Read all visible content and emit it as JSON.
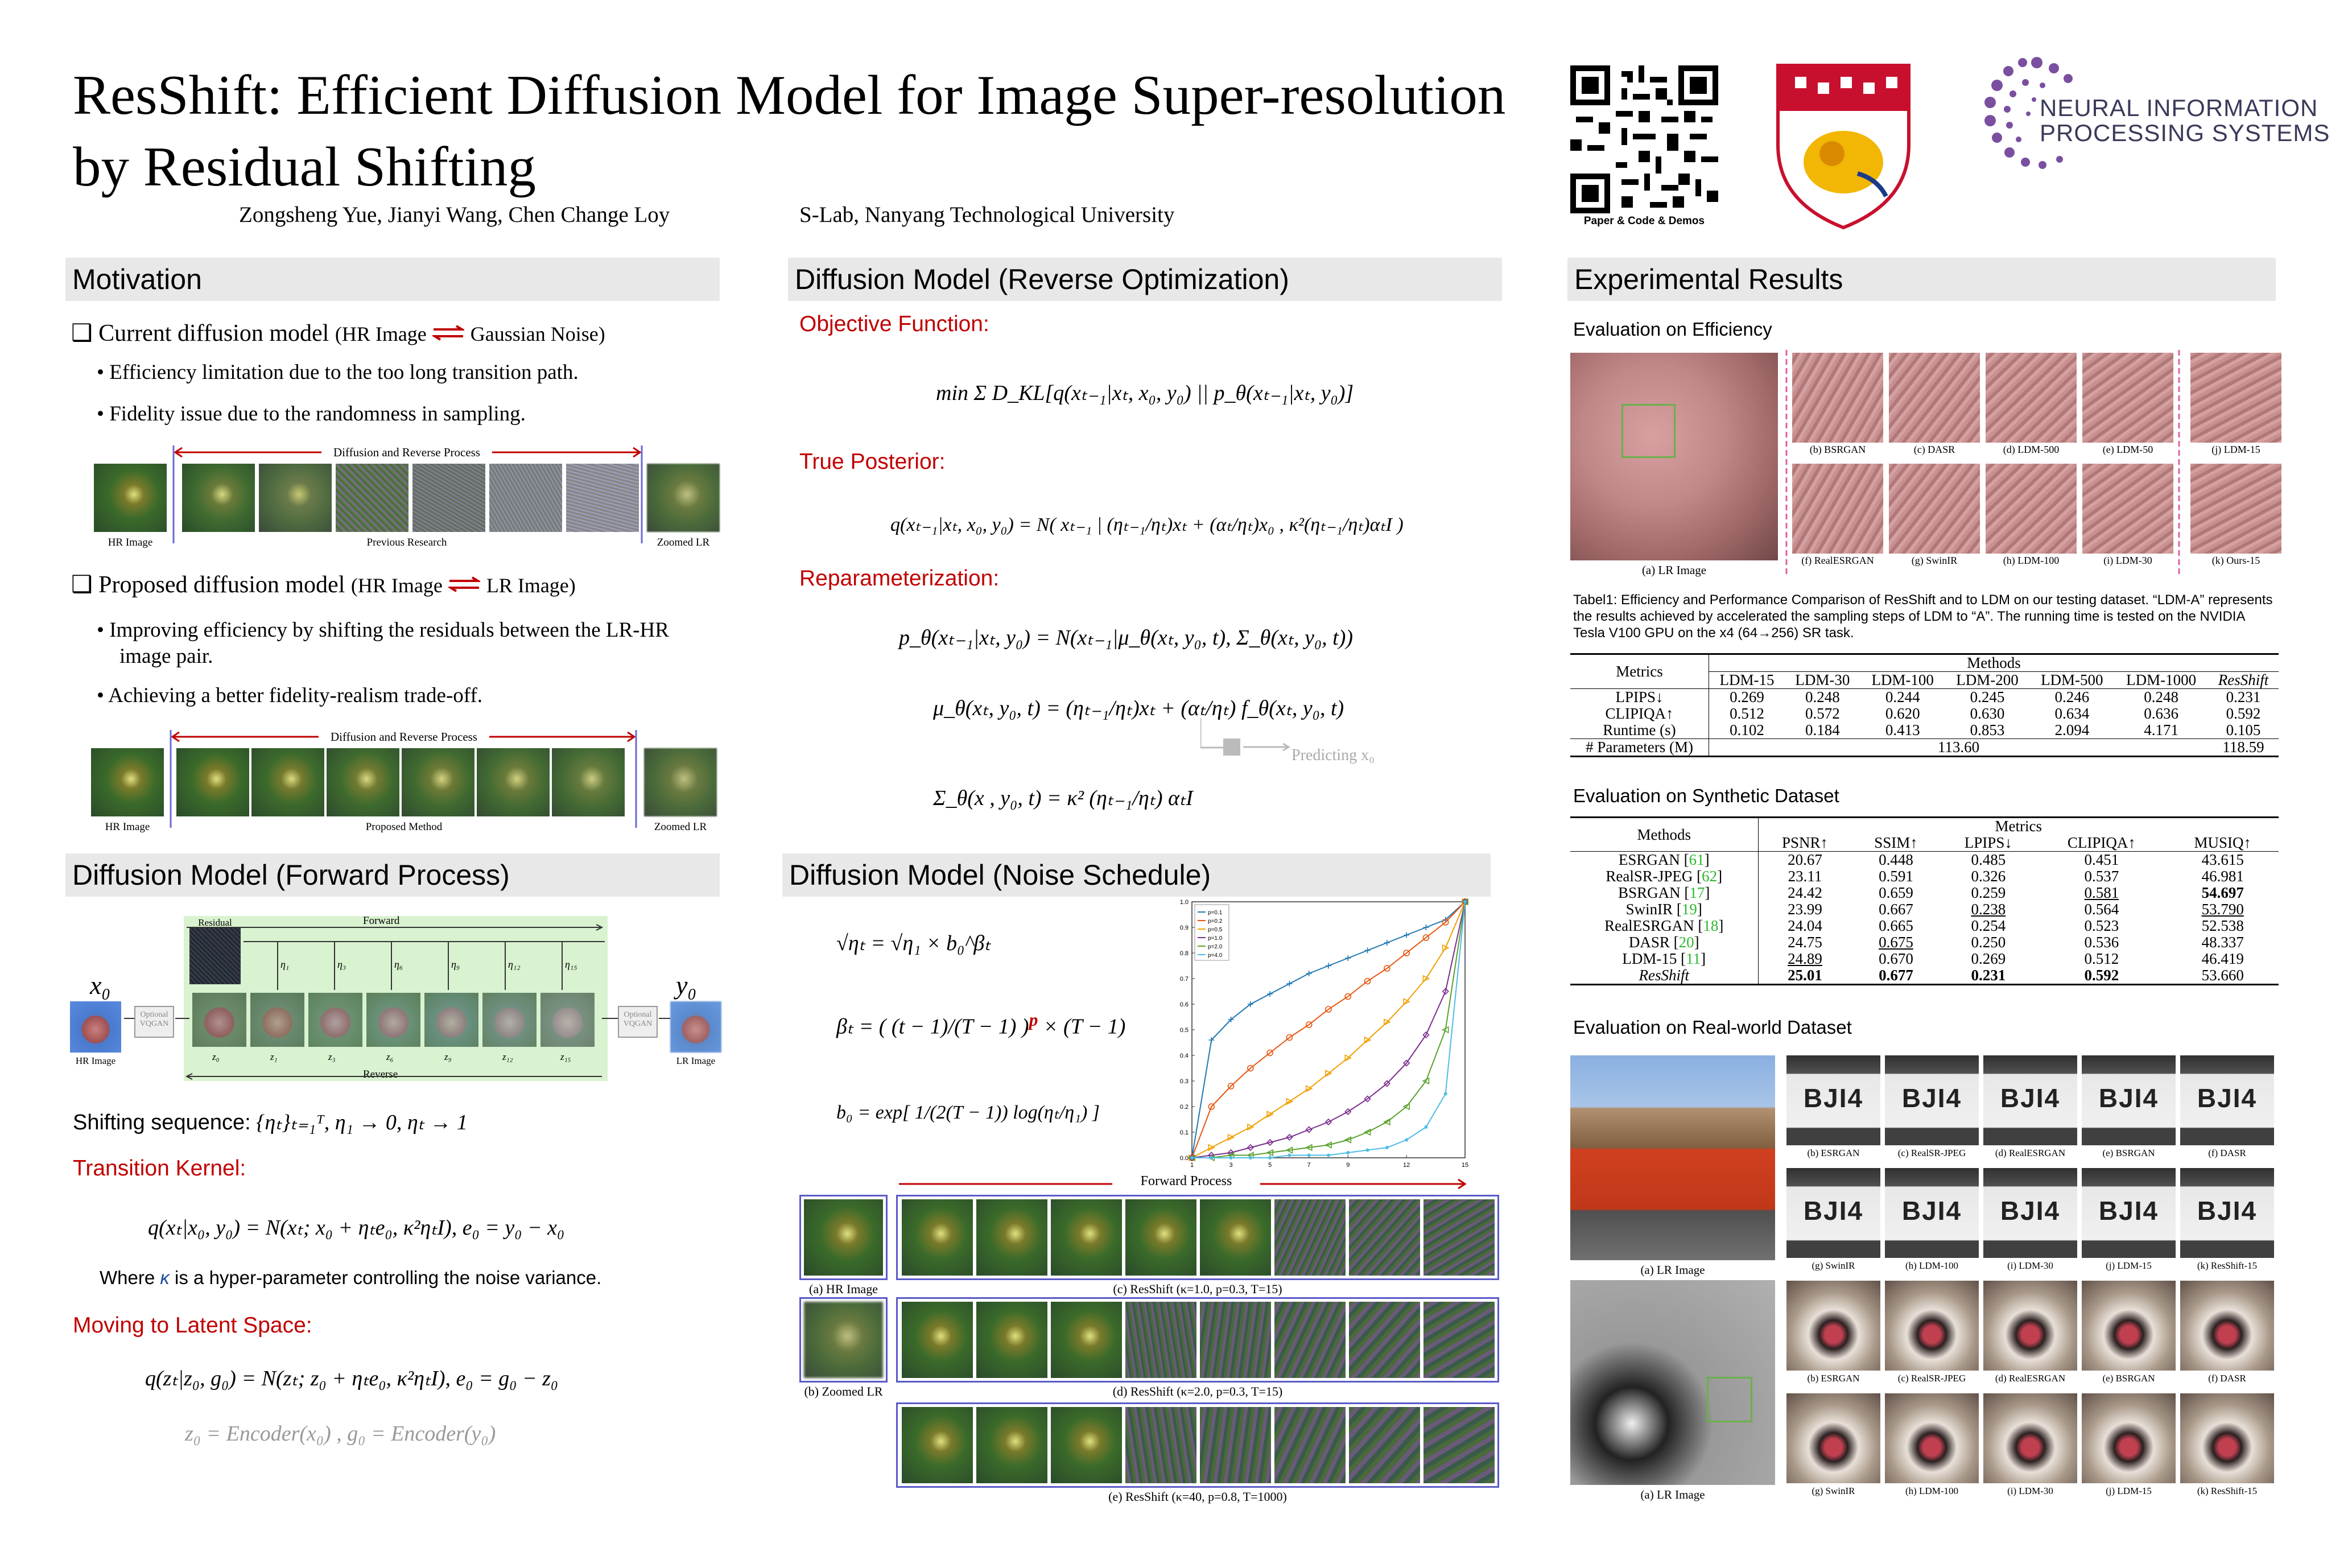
{
  "header": {
    "title_line1": "ResShift: Efficient Diffusion Model for Image Super-resolution",
    "title_line2": "by Residual Shifting",
    "authors": "Zongsheng Yue,  Jianyi Wang,  Chen Change Loy",
    "affiliation": "S-Lab, Nanyang Technological University",
    "qr_caption": "Paper & Code & Demos",
    "neurips_line1": "NEURAL INFORMATION",
    "neurips_line2": "PROCESSING SYSTEMS"
  },
  "motivation": {
    "heading": "Motivation",
    "current_label": "Current diffusion model",
    "current_paren_left": "(HR Image",
    "current_paren_right": "Gaussian Noise)",
    "current_bullets": [
      "Efficiency limitation due to the too long transition path.",
      "Fidelity issue due to the randomness in sampling."
    ],
    "fig1_arrow": "Diffusion and Reverse Process",
    "fig1_hr": "HR Image",
    "fig1_mid": "Previous Research",
    "fig1_lr": "Zoomed LR",
    "proposed_label": "Proposed diffusion model",
    "proposed_paren_left": "(HR Image",
    "proposed_paren_right": "LR Image)",
    "proposed_bullets": [
      "Improving efficiency by shifting the residuals between the LR-HR image pair.",
      "Achieving a better fidelity-realism trade-off."
    ],
    "fig2_arrow": "Diffusion and Reverse Process",
    "fig2_hr": "HR Image",
    "fig2_mid": "Proposed Method",
    "fig2_lr": "Zoomed LR"
  },
  "forward": {
    "heading": "Diffusion Model (Forward Process)",
    "x0": "x₀",
    "y0": "y₀",
    "residual": "Residual",
    "forward": "Forward",
    "reverse": "Reverse",
    "optional_left": "Optional VQGAN",
    "optional_right": "Optional VQGAN",
    "hr_label": "HR Image",
    "lr_label": "LR Image",
    "etas": [
      "η₁",
      "η₃",
      "η₆",
      "η₉",
      "η₁₂",
      "η₁₅"
    ],
    "zs": [
      "z₀",
      "z₁",
      "z₃",
      "z₆",
      "z₉",
      "z₁₂",
      "z₁₅"
    ],
    "shifting_label": "Shifting sequence:",
    "shifting_eq": "{ηₜ}ₜ₌₁ᵀ,  η₁ → 0,  ηₜ → 1",
    "transition_label": "Transition Kernel",
    "transition_eq": "q(xₜ|x₀, y₀) = N(xₜ; x₀ + ηₜe₀, κ²ηₜI),  e₀ = y₀ − x₀",
    "where_pre": "Where ",
    "where_kappa": "κ",
    "where_post": " is a hyper-parameter controlling the noise variance.",
    "latent_label": "Moving to Latent Space",
    "latent_eq": "q(zₜ|z₀, g₀) = N(zₜ; z₀ + ηₜe₀, κ²ηₜI),  e₀ = g₀ − z₀",
    "encoder_eq": "z₀ = Encoder(x₀) ,   g₀ = Encoder(y₀)"
  },
  "reverse": {
    "heading": "Diffusion Model (Reverse Optimization)",
    "objective_label": "Objective Function",
    "objective_eq": "min Σ D_KL[q(xₜ₋₁|xₜ, x₀, y₀) || p_θ(xₜ₋₁|xₜ, y₀)]",
    "posterior_label": "True Posterior",
    "posterior_eq": "q(xₜ₋₁|xₜ, x₀, y₀) = N( xₜ₋₁ | (ηₜ₋₁/ηₜ)xₜ + (αₜ/ηₜ)x₀ , κ²(ηₜ₋₁/ηₜ)αₜI )",
    "reparam_label": "Reparameterization",
    "reparam_eq1": "p_θ(xₜ₋₁|xₜ, y₀) = N(xₜ₋₁|μ_θ(xₜ, y₀, t), Σ_θ(xₜ, y₀, t))",
    "reparam_eq2": "μ_θ(xₜ, y₀, t) = (ηₜ₋₁/ηₜ)xₜ + (αₜ/ηₜ) f_θ(xₜ, y₀, t)",
    "predicting": "Predicting x₀",
    "reparam_eq3": "Σ_θ(x , y₀, t) = κ² (ηₜ₋₁/ηₜ) αₜI"
  },
  "noise": {
    "heading": "Diffusion Model (Noise Schedule)",
    "eq1": "√ηₜ = √η₁ × b₀^βₜ",
    "eq2_pre": "βₜ = ( (t − 1)/(T − 1) )",
    "eq2_p": "p",
    "eq2_post": " × (T − 1)",
    "eq3": "b₀ = exp[ 1/(2(T − 1)) log(ηₜ/η₁) ]",
    "forward_process": "Forward Process",
    "cap_hr": "(a) HR Image",
    "cap_lr": "(b) Zoomed LR",
    "cap_c": "(c) ResShift (κ=1.0, p=0.3, T=15)",
    "cap_d": "(d) ResShift (κ=2.0, p=0.3, T=15)",
    "cap_e": "(e) ResShift (κ=40, p=0.8, T=1000)"
  },
  "chart_data": {
    "type": "line",
    "title": "",
    "xlabel": "",
    "ylabel": "",
    "xlim": [
      1,
      15
    ],
    "ylim": [
      0,
      1
    ],
    "xticks": [
      1,
      3,
      5,
      7,
      9,
      12,
      15
    ],
    "yticks": [
      0,
      0.1,
      0.2,
      0.3,
      0.4,
      0.5,
      0.6,
      0.7,
      0.8,
      0.9,
      1.0
    ],
    "x": [
      1,
      2,
      3,
      4,
      5,
      6,
      7,
      8,
      9,
      10,
      11,
      12,
      13,
      14,
      15
    ],
    "series": [
      {
        "name": "p=0.1",
        "color": "#1f77b4",
        "values": [
          0.0,
          0.46,
          0.54,
          0.6,
          0.64,
          0.68,
          0.72,
          0.75,
          0.78,
          0.81,
          0.84,
          0.87,
          0.9,
          0.93,
          1.0
        ]
      },
      {
        "name": "p=0.2",
        "color": "#e6550d",
        "values": [
          0.0,
          0.2,
          0.28,
          0.35,
          0.41,
          0.47,
          0.52,
          0.58,
          0.63,
          0.69,
          0.74,
          0.8,
          0.86,
          0.92,
          1.0
        ]
      },
      {
        "name": "p=0.5",
        "color": "#f0a000",
        "values": [
          0.0,
          0.04,
          0.08,
          0.12,
          0.17,
          0.22,
          0.27,
          0.33,
          0.39,
          0.46,
          0.53,
          0.61,
          0.7,
          0.82,
          1.0
        ]
      },
      {
        "name": "p=1.0",
        "color": "#7b2d8e",
        "values": [
          0.0,
          0.01,
          0.02,
          0.04,
          0.06,
          0.08,
          0.11,
          0.14,
          0.18,
          0.23,
          0.29,
          0.37,
          0.48,
          0.65,
          1.0
        ]
      },
      {
        "name": "p=2.0",
        "color": "#5aa02c",
        "values": [
          0.0,
          0.0,
          0.01,
          0.01,
          0.02,
          0.03,
          0.04,
          0.05,
          0.07,
          0.1,
          0.14,
          0.2,
          0.3,
          0.5,
          1.0
        ]
      },
      {
        "name": "p=4.0",
        "color": "#4dbde6",
        "values": [
          0.0,
          0.0,
          0.0,
          0.0,
          0.0,
          0.01,
          0.01,
          0.01,
          0.02,
          0.03,
          0.04,
          0.07,
          0.12,
          0.25,
          1.0
        ]
      }
    ]
  },
  "results": {
    "heading": "Experimental Results",
    "eff_heading": "Evaluation on Efficiency",
    "eff_caps_top": [
      "(b) BSRGAN",
      "(c) DASR",
      "(d) LDM-500",
      "(e) LDM-50",
      "(j) LDM-15"
    ],
    "eff_caps_bot": [
      "(f) RealESRGAN",
      "(g) SwinIR",
      "(h) LDM-100",
      "(i) LDM-30",
      "(k) Ours-15"
    ],
    "eff_lr_cap": "(a) LR Image",
    "table1_caption": "Tabel1: Efficiency and Performance Comparison of ResShift and to LDM on our testing dataset. “LDM-A” represents the results achieved by accelerated the sampling steps of LDM to “A”. The running time is tested  on the NVIDIA Tesla V100 GPU on the x4 (64→256) SR task.",
    "table1": {
      "metrics_label": "Metrics",
      "methods_label": "Methods",
      "columns": [
        "LDM-15",
        "LDM-30",
        "LDM-100",
        "LDM-200",
        "LDM-500",
        "LDM-1000",
        "ResShift"
      ],
      "rows": [
        {
          "name": "LPIPS↓",
          "values": [
            "0.269",
            "0.248",
            "0.244",
            "0.245",
            "0.246",
            "0.248",
            "0.231"
          ]
        },
        {
          "name": "CLIPIQA↑",
          "values": [
            "0.512",
            "0.572",
            "0.620",
            "0.630",
            "0.634",
            "0.636",
            "0.592"
          ]
        },
        {
          "name": "Runtime (s)",
          "values": [
            "0.102",
            "0.184",
            "0.413",
            "0.853",
            "2.094",
            "4.171",
            "0.105"
          ]
        }
      ],
      "params_label": "# Parameters (M)",
      "params_ldm": "113.60",
      "params_ours": "118.59"
    },
    "syn_heading": "Evaluation on Synthetic Dataset",
    "table2": {
      "methods_label": "Methods",
      "metrics_label": "Metrics",
      "columns": [
        "PSNR↑",
        "SSIM↑",
        "LPIPS↓",
        "CLIPIQA↑",
        "MUSIQ↑"
      ],
      "rows": [
        {
          "name": "ESRGAN",
          "cite": "61",
          "values": [
            "20.67",
            "0.448",
            "0.485",
            "0.451",
            "43.615"
          ]
        },
        {
          "name": "RealSR-JPEG",
          "cite": "62",
          "values": [
            "23.11",
            "0.591",
            "0.326",
            "0.537",
            "46.981"
          ]
        },
        {
          "name": "BSRGAN",
          "cite": "17",
          "values": [
            "24.42",
            "0.659",
            "0.259",
            "0.581",
            "54.697"
          ]
        },
        {
          "name": "SwinIR",
          "cite": "19",
          "values": [
            "23.99",
            "0.667",
            "0.238",
            "0.564",
            "53.790"
          ]
        },
        {
          "name": "RealESRGAN",
          "cite": "18",
          "values": [
            "24.04",
            "0.665",
            "0.254",
            "0.523",
            "52.538"
          ]
        },
        {
          "name": "DASR",
          "cite": "20",
          "values": [
            "24.75",
            "0.675",
            "0.250",
            "0.536",
            "48.337"
          ]
        },
        {
          "name": "LDM-15",
          "cite": "11",
          "values": [
            "24.89",
            "0.670",
            "0.269",
            "0.512",
            "46.419"
          ]
        },
        {
          "name": "ResShift",
          "cite": "",
          "values": [
            "25.01",
            "0.677",
            "0.231",
            "0.592",
            "53.660"
          ]
        }
      ]
    },
    "real_heading": "Evaluation on Real-world Dataset",
    "real_lr_cap1": "(a) LR Image",
    "real_lr_cap2": "(a) LR Image",
    "real_plate_text": "BJI4",
    "real_caps_row1": [
      "(b) ESRGAN",
      "(c) RealSR-JPEG",
      "(d) RealESRGAN",
      "(e) BSRGAN",
      "(f) DASR"
    ],
    "real_caps_row2": [
      "(g) SwinIR",
      "(h) LDM-100",
      "(i) LDM-30",
      "(j) LDM-15",
      "(k) ResShift-15"
    ],
    "real_caps_row3": [
      "(b) ESRGAN",
      "(c) RealSR-JPEG",
      "(d) RealESRGAN",
      "(e) BSRGAN",
      "(f) DASR"
    ],
    "real_caps_row4": [
      "(g) SwinIR",
      "(h) LDM-100",
      "(i) LDM-30",
      "(j) LDM-15",
      "(k) ResShift-15"
    ]
  },
  "colors": {
    "accent_red": "#c00000",
    "accent_blue": "#1f4e9e",
    "section_bg": "#e8e8e8",
    "cite_green": "#2eb82e"
  }
}
